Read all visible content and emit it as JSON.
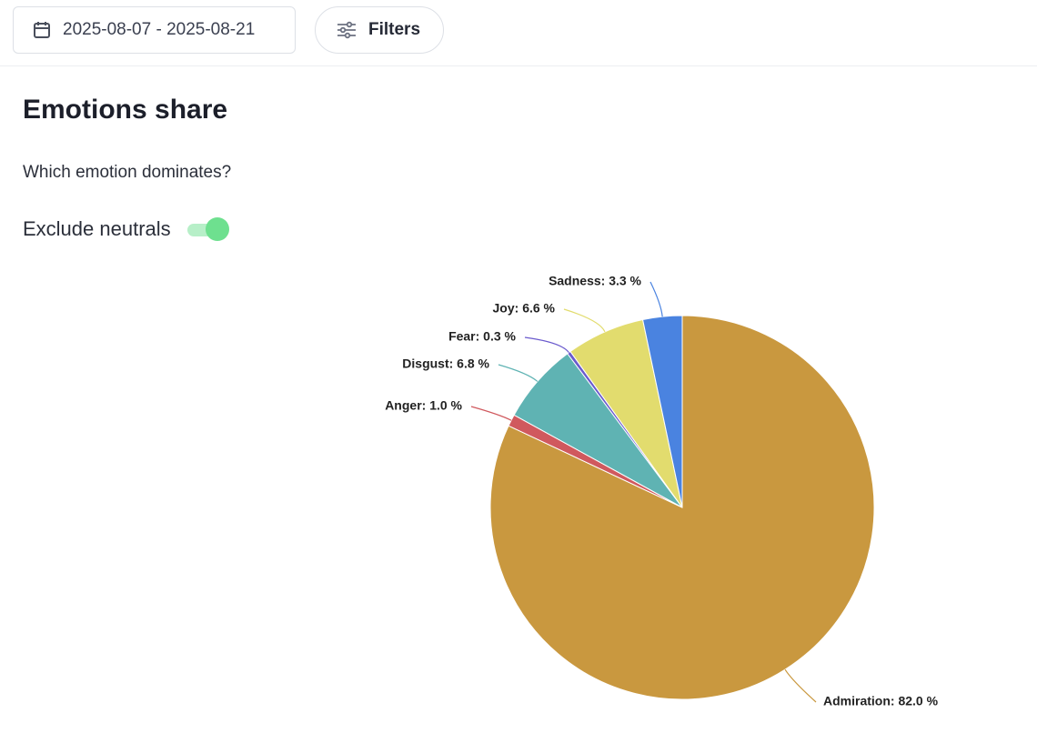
{
  "toolbar": {
    "date_range": "2025-08-07 - 2025-08-21",
    "filters": "Filters"
  },
  "panel": {
    "title": "Emotions share",
    "subtitle": "Which emotion dominates?",
    "toggle_label": "Exclude neutrals"
  },
  "chart_data": {
    "type": "pie",
    "categories": [
      "Admiration",
      "Anger",
      "Disgust",
      "Fear",
      "Joy",
      "Sadness"
    ],
    "values": [
      82.0,
      1.0,
      6.8,
      0.3,
      6.6,
      3.3
    ],
    "value_labels": [
      "Admiration: 82.0 %",
      "Anger: 1.0 %",
      "Disgust: 6.8 %",
      "Fear: 0.3 %",
      "Joy: 6.6 %",
      "Sadness: 3.3 %"
    ],
    "colors": [
      "#c9983f",
      "#d0595e",
      "#5fb3b3",
      "#6a5acd",
      "#e2dc6e",
      "#4a83e0"
    ]
  }
}
